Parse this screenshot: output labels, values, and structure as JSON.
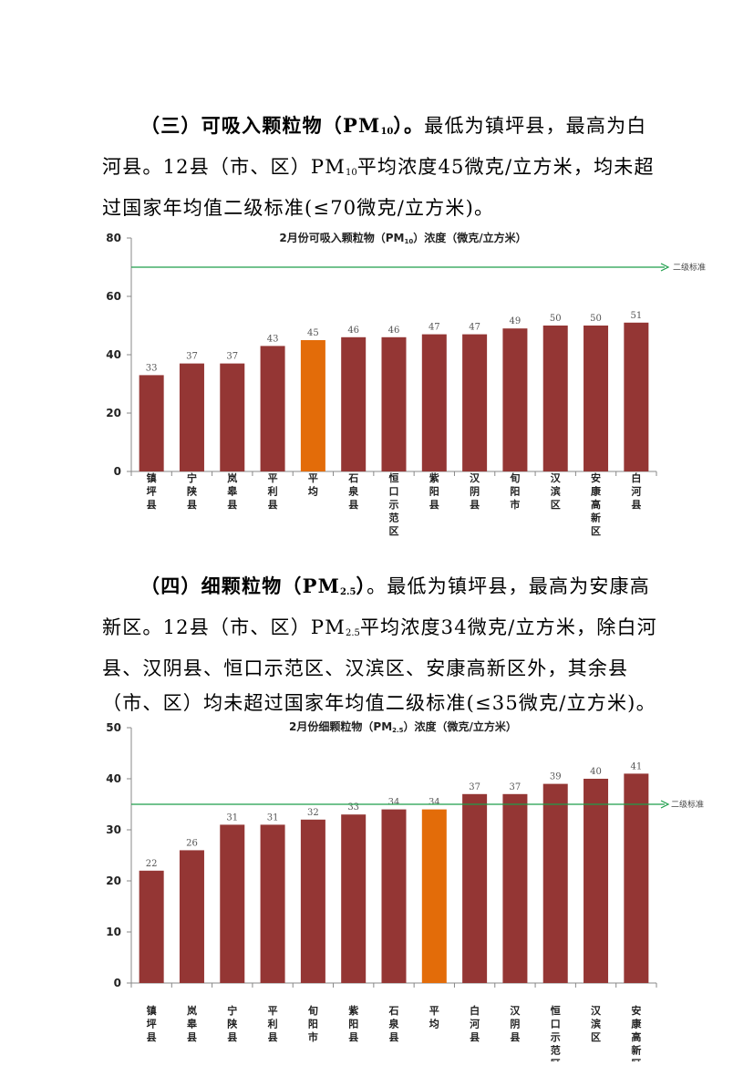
{
  "section3": {
    "heading": "（三）可吸入颗粒物（PM",
    "heading_sub": "10",
    "heading_end": "）。",
    "s1": "最低为镇坪县，最高为白河县。12县（市、区）PM",
    "s1_sub": "10",
    "s2": "平均浓度45微克/立方米，均未超过国家年均值二级标准(≤70微克/立方米)。"
  },
  "section4": {
    "heading": "（四）细颗粒物（PM",
    "heading_sub": "2.5",
    "heading_end": "）",
    "s1": "。最低为镇坪县，最高为安康高新区。12县（市、区）PM",
    "s1_sub": "2.5",
    "s2": "平均浓度34微克/立方米，除白河县、汉阴县、恒口示范区、汉滨区、安康高新区外，其余县（市、区）均未超过国家年均值二级标准(≤35微克/立方米)。"
  },
  "colors": {
    "bar": "#943634",
    "highlight": "#E36C09",
    "standard_line": "#1E9E4A"
  },
  "chart_data": [
    {
      "type": "bar",
      "title_pre": "2月份可吸入颗粒物（PM",
      "title_sub": "10",
      "title_post": "）浓度（微克/立方米）",
      "categories": [
        "镇坪县",
        "宁陕县",
        "岚皋县",
        "平利县",
        "平均",
        "石泉县",
        "恒口示范区",
        "紫阳县",
        "汉阴县",
        "旬阳市",
        "汉滨区",
        "安康高新区",
        "白河县"
      ],
      "values": [
        33,
        37,
        37,
        43,
        45,
        46,
        46,
        47,
        47,
        49,
        50,
        50,
        51
      ],
      "highlight_index": 4,
      "ylim": [
        0,
        80
      ],
      "yticks": [
        0,
        20,
        40,
        60,
        80
      ],
      "standard_value": 70,
      "standard_label": "二级标准"
    },
    {
      "type": "bar",
      "title_pre": "2月份细颗粒物（PM",
      "title_sub": "2.5",
      "title_post": "）浓度（微克/立方米）",
      "categories": [
        "镇坪县",
        "岚皋县",
        "宁陕县",
        "平利县",
        "旬阳市",
        "紫阳县",
        "石泉县",
        "平均",
        "白河县",
        "汉阴县",
        "恒口示范区",
        "汉滨区",
        "安康高新区"
      ],
      "values": [
        22,
        26,
        31,
        31,
        32,
        33,
        34,
        34,
        37,
        37,
        39,
        40,
        41
      ],
      "highlight_index": 7,
      "ylim": [
        0,
        50
      ],
      "yticks": [
        0,
        10,
        20,
        30,
        40,
        50
      ],
      "standard_value": 35,
      "standard_label": "二级标准"
    }
  ]
}
